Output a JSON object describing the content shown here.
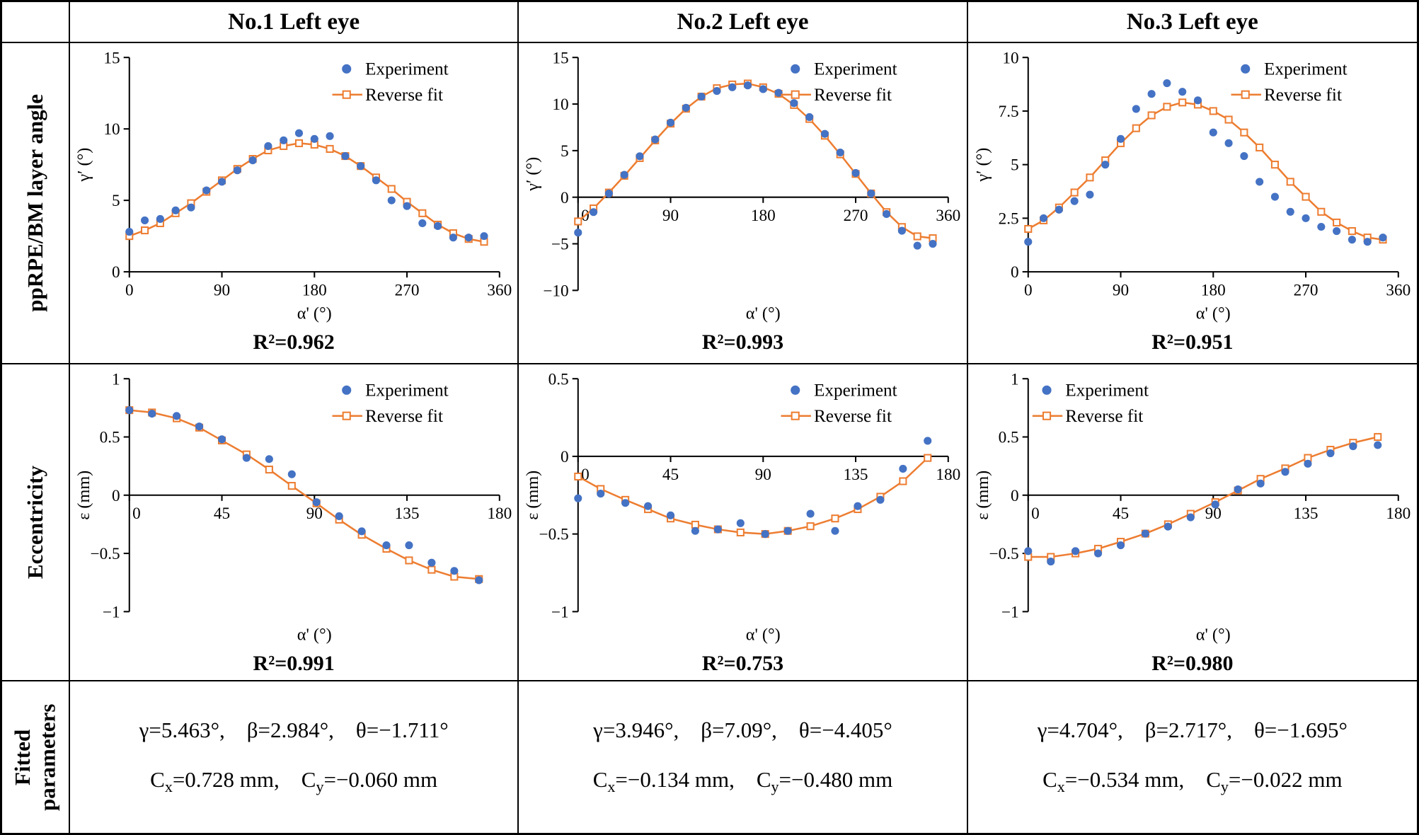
{
  "colors": {
    "experiment": "#4472C4",
    "fit": "#ED7D31",
    "axis": "#000000"
  },
  "columns": [
    "No.1 Left eye",
    "No.2 Left eye",
    "No.3 Left eye"
  ],
  "rows": [
    "ppRPE/BM layer angle",
    "Eccentricity",
    "Fitted parameters"
  ],
  "legend": {
    "experiment": "Experiment",
    "fit": "Reverse fit"
  },
  "fitted_parameters": [
    {
      "angles": "γ=5.463°,    β=2.984°,    θ=−1.711°",
      "centers_html": "C<sub>x</sub>=0.728 mm,    C<sub>y</sub>=−0.060 mm"
    },
    {
      "angles": "γ=3.946°,    β=7.09°,    θ=−4.405°",
      "centers_html": "C<sub>x</sub>=−0.134 mm,    C<sub>y</sub>=−0.480 mm"
    },
    {
      "angles": "γ=4.704°,    β=2.717°,    θ=−1.695°",
      "centers_html": "C<sub>x</sub>=−0.534 mm,    C<sub>y</sub>=−0.022 mm"
    }
  ],
  "chart_data": [
    {
      "name": "no1-layer-angle",
      "type": "scatter+line",
      "title": "No.1 Left eye",
      "xlabel": "α' (°)",
      "ylabel": "γ′ (°)",
      "xlim": [
        0,
        360
      ],
      "ylim": [
        0,
        15
      ],
      "xticks": [
        0,
        90,
        180,
        270,
        360
      ],
      "xtick_labels": [
        "0",
        "90",
        "180",
        "270",
        "360"
      ],
      "yticks": [
        0,
        5,
        10,
        15
      ],
      "ytick_labels": [
        "0",
        "5",
        "10",
        "15"
      ],
      "x_axis_at": 0,
      "legend_pos": "top-right",
      "r2": "R²=0.962",
      "x": [
        0,
        15,
        30,
        45,
        60,
        75,
        90,
        105,
        120,
        135,
        150,
        165,
        180,
        195,
        210,
        225,
        240,
        255,
        270,
        285,
        300,
        315,
        330,
        345
      ],
      "experiment": [
        2.8,
        3.6,
        3.7,
        4.3,
        4.5,
        5.7,
        6.3,
        7.1,
        7.8,
        8.8,
        9.2,
        9.7,
        9.3,
        9.5,
        8.1,
        7.4,
        6.4,
        5.0,
        4.6,
        3.4,
        3.2,
        2.4,
        2.4,
        2.5
      ],
      "fit": [
        2.5,
        2.9,
        3.4,
        4.1,
        4.8,
        5.6,
        6.4,
        7.2,
        7.9,
        8.5,
        8.8,
        9.0,
        8.9,
        8.6,
        8.1,
        7.4,
        6.6,
        5.8,
        4.9,
        4.1,
        3.3,
        2.7,
        2.3,
        2.1
      ]
    },
    {
      "name": "no2-layer-angle",
      "type": "scatter+line",
      "title": "No.2 Left eye",
      "xlabel": "α' (°)",
      "ylabel": "γ′ (°)",
      "xlim": [
        0,
        360
      ],
      "ylim": [
        -10,
        15
      ],
      "xticks": [
        0,
        90,
        180,
        270,
        360
      ],
      "xtick_labels": [
        "0",
        "90",
        "180",
        "270",
        "360"
      ],
      "yticks": [
        -10,
        -5,
        0,
        5,
        10,
        15
      ],
      "ytick_labels": [
        "−10",
        "−5",
        "0",
        "5",
        "10",
        "15"
      ],
      "x_axis_at": 0,
      "legend_pos": "top-right",
      "r2": "R²=0.993",
      "x": [
        0,
        15,
        30,
        45,
        60,
        75,
        90,
        105,
        120,
        135,
        150,
        165,
        180,
        195,
        210,
        225,
        240,
        255,
        270,
        285,
        300,
        315,
        330,
        345
      ],
      "experiment": [
        -3.8,
        -1.6,
        0.4,
        2.4,
        4.4,
        6.2,
        8.0,
        9.6,
        10.8,
        11.4,
        11.8,
        12.0,
        11.6,
        11.2,
        10.1,
        8.6,
        6.8,
        4.8,
        2.6,
        0.4,
        -1.8,
        -3.6,
        -5.2,
        -5.0
      ],
      "fit": [
        -2.6,
        -1.2,
        0.5,
        2.3,
        4.2,
        6.1,
        7.9,
        9.5,
        10.8,
        11.7,
        12.1,
        12.2,
        11.8,
        11.1,
        9.9,
        8.4,
        6.6,
        4.6,
        2.5,
        0.4,
        -1.6,
        -3.2,
        -4.2,
        -4.4
      ]
    },
    {
      "name": "no3-layer-angle",
      "type": "scatter+line",
      "title": "No.3 Left eye",
      "xlabel": "α' (°)",
      "ylabel": "γ′ (°)",
      "xlim": [
        0,
        360
      ],
      "ylim": [
        0,
        10
      ],
      "xticks": [
        0,
        90,
        180,
        270,
        360
      ],
      "xtick_labels": [
        "0",
        "90",
        "180",
        "270",
        "360"
      ],
      "yticks": [
        0,
        2.5,
        5,
        7.5,
        10
      ],
      "ytick_labels": [
        "0",
        "2.5",
        "5",
        "7.5",
        "10"
      ],
      "x_axis_at": 0,
      "legend_pos": "top-right",
      "r2": "R²=0.951",
      "x": [
        0,
        15,
        30,
        45,
        60,
        75,
        90,
        105,
        120,
        135,
        150,
        165,
        180,
        195,
        210,
        225,
        240,
        255,
        270,
        285,
        300,
        315,
        330,
        345
      ],
      "experiment": [
        1.4,
        2.5,
        2.9,
        3.3,
        3.6,
        5.0,
        6.2,
        7.6,
        8.3,
        8.8,
        8.4,
        8.0,
        6.5,
        6.0,
        5.4,
        4.2,
        3.5,
        2.8,
        2.5,
        2.1,
        1.9,
        1.5,
        1.4,
        1.6
      ],
      "fit": [
        2.0,
        2.4,
        3.0,
        3.7,
        4.4,
        5.2,
        6.0,
        6.7,
        7.3,
        7.7,
        7.9,
        7.8,
        7.5,
        7.1,
        6.5,
        5.8,
        5.0,
        4.2,
        3.5,
        2.8,
        2.3,
        1.9,
        1.6,
        1.5
      ]
    },
    {
      "name": "no1-eccentricity",
      "type": "scatter+line",
      "title": "No.1 Left eye",
      "xlabel": "α' (°)",
      "ylabel": "ε (mm)",
      "xlim": [
        0,
        180
      ],
      "ylim": [
        -1,
        1
      ],
      "xticks": [
        0,
        45,
        90,
        135,
        180
      ],
      "xtick_labels": [
        "0",
        "45",
        "90",
        "135",
        "180"
      ],
      "yticks": [
        -1,
        -0.5,
        0,
        0.5,
        1
      ],
      "ytick_labels": [
        "−1",
        "−0.5",
        "0",
        "0.5",
        "1"
      ],
      "x_axis_at": 0,
      "legend_pos": "top-right",
      "r2": "R²=0.991",
      "x": [
        0,
        11,
        23,
        34,
        45,
        57,
        68,
        79,
        91,
        102,
        113,
        125,
        136,
        147,
        158,
        170
      ],
      "experiment": [
        0.73,
        0.7,
        0.68,
        0.59,
        0.48,
        0.32,
        0.31,
        0.18,
        -0.06,
        -0.18,
        -0.31,
        -0.43,
        -0.43,
        -0.58,
        -0.65,
        -0.73
      ],
      "fit": [
        0.73,
        0.71,
        0.66,
        0.58,
        0.47,
        0.35,
        0.22,
        0.08,
        -0.07,
        -0.21,
        -0.34,
        -0.46,
        -0.56,
        -0.64,
        -0.7,
        -0.72
      ]
    },
    {
      "name": "no2-eccentricity",
      "type": "scatter+line",
      "title": "No.2 Left eye",
      "xlabel": "α' (°)",
      "ylabel": "ε (mm)",
      "xlim": [
        0,
        180
      ],
      "ylim": [
        -1,
        0.5
      ],
      "xticks": [
        0,
        45,
        90,
        135,
        180
      ],
      "xtick_labels": [
        "0",
        "45",
        "90",
        "135",
        "180"
      ],
      "yticks": [
        -1,
        -0.5,
        0,
        0.5
      ],
      "ytick_labels": [
        "−1",
        "−0.5",
        "0",
        "0.5"
      ],
      "x_axis_at": 0,
      "legend_pos": "top-right",
      "r2": "R²=0.753",
      "x": [
        0,
        11,
        23,
        34,
        45,
        57,
        68,
        79,
        91,
        102,
        113,
        125,
        136,
        147,
        158,
        170
      ],
      "experiment": [
        -0.27,
        -0.24,
        -0.3,
        -0.32,
        -0.38,
        -0.48,
        -0.47,
        -0.43,
        -0.5,
        -0.48,
        -0.37,
        -0.48,
        -0.32,
        -0.28,
        -0.08,
        0.1
      ],
      "fit": [
        -0.13,
        -0.21,
        -0.28,
        -0.34,
        -0.4,
        -0.44,
        -0.47,
        -0.49,
        -0.5,
        -0.48,
        -0.45,
        -0.4,
        -0.34,
        -0.26,
        -0.16,
        -0.01
      ]
    },
    {
      "name": "no3-eccentricity",
      "type": "scatter+line",
      "title": "No.3 Left eye",
      "xlabel": "α' (°)",
      "ylabel": "ε (mm)",
      "xlim": [
        0,
        180
      ],
      "ylim": [
        -1,
        1
      ],
      "xticks": [
        0,
        45,
        90,
        135,
        180
      ],
      "xtick_labels": [
        "0",
        "45",
        "90",
        "135",
        "180"
      ],
      "yticks": [
        -1,
        -0.5,
        0,
        0.5,
        1
      ],
      "ytick_labels": [
        "−1",
        "−0.5",
        "0",
        "0.5",
        "1"
      ],
      "x_axis_at": 0,
      "legend_pos": "top-left",
      "r2": "R²=0.980",
      "x": [
        0,
        11,
        23,
        34,
        45,
        57,
        68,
        79,
        91,
        102,
        113,
        125,
        136,
        147,
        158,
        170
      ],
      "experiment": [
        -0.48,
        -0.57,
        -0.48,
        -0.5,
        -0.43,
        -0.33,
        -0.27,
        -0.19,
        -0.08,
        0.05,
        0.1,
        0.2,
        0.27,
        0.36,
        0.42,
        0.43
      ],
      "fit": [
        -0.53,
        -0.53,
        -0.5,
        -0.46,
        -0.4,
        -0.33,
        -0.25,
        -0.16,
        -0.06,
        0.04,
        0.14,
        0.23,
        0.32,
        0.39,
        0.45,
        0.5
      ]
    }
  ]
}
